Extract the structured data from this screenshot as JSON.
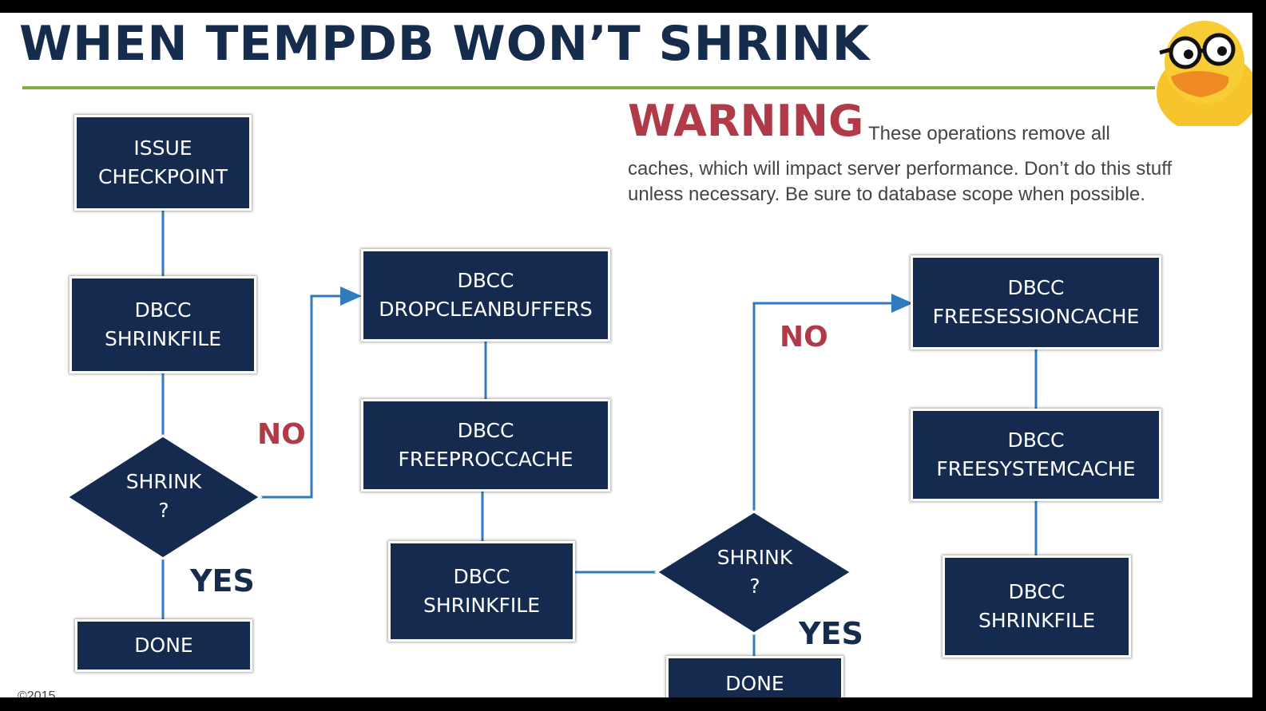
{
  "slide": {
    "title": "WHEN TEMPDB WON’T SHRINK",
    "colors": {
      "navy": "#142a4e",
      "accent_green": "#7fae3b",
      "warning_red": "#b03a48"
    }
  },
  "warning": {
    "heading": "WARNING",
    "line1": "These operations remove all",
    "rest": "caches, which will impact server performance. Don’t do this stuff unless necessary. Be sure to database scope when possible."
  },
  "mascot": {
    "icon": "duck-with-glasses-icon"
  },
  "flow": {
    "issue_checkpoint": [
      "ISSUE",
      "CHECKPOINT"
    ],
    "shrinkfile_1": [
      "DBCC",
      "SHRINKFILE"
    ],
    "shrink_decision_1": [
      "SHRINK",
      "?"
    ],
    "done_1": "DONE",
    "no_1": "NO",
    "yes_1": "YES",
    "dropcleanbuffers": [
      "DBCC",
      "DROPCLEANBUFFERS"
    ],
    "freeproccache": [
      "DBCC",
      "FREEPROCCACHE"
    ],
    "shrinkfile_2": [
      "DBCC",
      "SHRINKFILE"
    ],
    "shrink_decision_2": [
      "SHRINK",
      "?"
    ],
    "done_2": "DONE",
    "no_2": "NO",
    "yes_2": "YES",
    "freesessioncache": [
      "DBCC",
      "FREESESSIONCACHE"
    ],
    "freesystemcache": [
      "DBCC",
      "FREESYSTEMCACHE"
    ],
    "shrinkfile_3": [
      "DBCC",
      "SHRINKFILE"
    ]
  },
  "footer": {
    "corner_text": "©2015"
  }
}
